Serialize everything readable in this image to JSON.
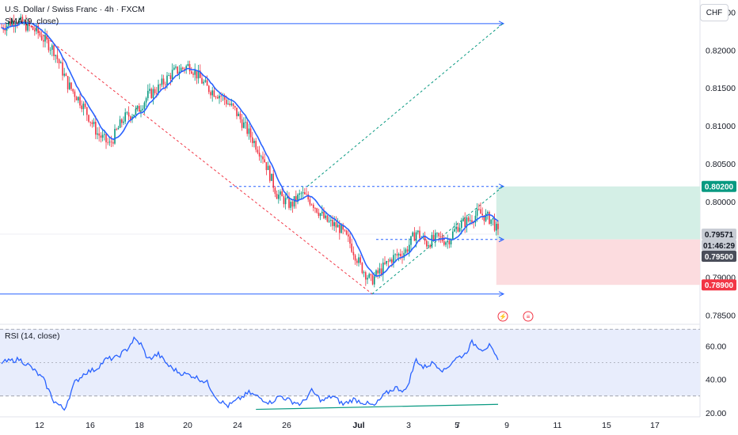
{
  "header": {
    "symbol_title": "U.S. Dollar / Swiss Franc · 4h · FXCM",
    "sma_label": "SMA (9, close)",
    "rsi_label": "RSI (14, close)",
    "currency_button": "CHF"
  },
  "price_axis": {
    "ticks": [
      "0.82500",
      "0.82000",
      "0.81500",
      "0.81000",
      "0.80500",
      "0.80000",
      "0.79500",
      "0.79000",
      "0.78500"
    ],
    "badges": [
      {
        "text": "0.80200",
        "color": "#089981"
      },
      {
        "text": "0.79571",
        "color": "#c8ccd4"
      },
      {
        "text": "01:46:29",
        "color": "#c8ccd4"
      },
      {
        "text": "0.79500",
        "color": "#4a4e5a"
      },
      {
        "text": "0.78900",
        "color": "#f23645"
      }
    ]
  },
  "rsi_axis": {
    "ticks": [
      "60.00",
      "40.00",
      "20.00"
    ]
  },
  "time_axis": {
    "ticks": [
      "12",
      "16",
      "18",
      "20",
      "24",
      "26",
      "Jul",
      "3",
      "5",
      "7",
      "9",
      "11",
      "15",
      "17"
    ]
  },
  "colors": {
    "up": "#089981",
    "down": "#f23645",
    "sma": "#2962ff",
    "rsi": "#2962ff",
    "trendline": "#2962ff",
    "fib_red": "#f23645",
    "fib_green": "#089981",
    "profit_zone": "#d4efe6",
    "loss_zone": "#fcdcdf",
    "rsi_band": "#e8edfc"
  },
  "icons": [
    "lightning-event-icon",
    "us-flag-event-icon"
  ],
  "chart_data": [
    {
      "type": "candlestick",
      "title": "U.S. Dollar / Swiss Franc · 4h · FXCM",
      "ylim": [
        0.7838,
        0.8262
      ],
      "x_ticks": [
        "12",
        "16",
        "18",
        "20",
        "24",
        "26",
        "Jul",
        "3",
        "5",
        "7",
        "9",
        "11",
        "15",
        "17"
      ],
      "anchors": [
        [
          0,
          0.823
        ],
        [
          8,
          0.824
        ],
        [
          20,
          0.8225
        ],
        [
          30,
          0.82
        ],
        [
          38,
          0.8155
        ],
        [
          46,
          0.813
        ],
        [
          55,
          0.809
        ],
        [
          62,
          0.8075
        ],
        [
          70,
          0.811
        ],
        [
          78,
          0.812
        ],
        [
          84,
          0.814
        ],
        [
          90,
          0.815
        ],
        [
          98,
          0.817
        ],
        [
          108,
          0.818
        ],
        [
          118,
          0.815
        ],
        [
          126,
          0.814
        ],
        [
          134,
          0.812
        ],
        [
          142,
          0.809
        ],
        [
          150,
          0.806
        ],
        [
          158,
          0.801
        ],
        [
          166,
          0.7995
        ],
        [
          172,
          0.801
        ],
        [
          178,
          0.8
        ],
        [
          186,
          0.7975
        ],
        [
          194,
          0.7965
        ],
        [
          200,
          0.7945
        ],
        [
          206,
          0.7915
        ],
        [
          212,
          0.7895
        ],
        [
          218,
          0.791
        ],
        [
          224,
          0.7925
        ],
        [
          232,
          0.7935
        ],
        [
          238,
          0.796
        ],
        [
          244,
          0.7945
        ],
        [
          250,
          0.7952
        ],
        [
          256,
          0.7948
        ],
        [
          262,
          0.7968
        ],
        [
          268,
          0.7975
        ],
        [
          274,
          0.7985
        ],
        [
          278,
          0.798
        ],
        [
          282,
          0.7975
        ],
        [
          285,
          0.7957
        ]
      ],
      "series": [
        {
          "name": "SMA (9, close)",
          "kind": "sma",
          "period": 9
        }
      ],
      "trade_setup": {
        "take_profit": 0.802,
        "entry": 0.795,
        "stop_loss": 0.789,
        "last_price": 0.79571,
        "bar_countdown": "01:46:29"
      },
      "horizontal_lines": [
        0.8235,
        0.7878
      ],
      "dashed_levels": [
        0.802,
        0.795
      ]
    },
    {
      "type": "line",
      "title": "RSI (14, close)",
      "ylim": [
        18,
        72
      ],
      "bands": [
        30,
        70
      ],
      "ticks": [
        60,
        40,
        20
      ],
      "anchors": [
        [
          0,
          50
        ],
        [
          10,
          52
        ],
        [
          16,
          48
        ],
        [
          24,
          40
        ],
        [
          30,
          27
        ],
        [
          36,
          22
        ],
        [
          42,
          38
        ],
        [
          48,
          44
        ],
        [
          54,
          46
        ],
        [
          60,
          52
        ],
        [
          66,
          53
        ],
        [
          72,
          58
        ],
        [
          76,
          64
        ],
        [
          80,
          61
        ],
        [
          84,
          52
        ],
        [
          90,
          55
        ],
        [
          96,
          48
        ],
        [
          102,
          44
        ],
        [
          110,
          42
        ],
        [
          118,
          38
        ],
        [
          124,
          28
        ],
        [
          130,
          24
        ],
        [
          136,
          28
        ],
        [
          142,
          32
        ],
        [
          148,
          29
        ],
        [
          154,
          26
        ],
        [
          160,
          30
        ],
        [
          166,
          27
        ],
        [
          172,
          25
        ],
        [
          178,
          33
        ],
        [
          184,
          27
        ],
        [
          190,
          30
        ],
        [
          196,
          25
        ],
        [
          202,
          28
        ],
        [
          208,
          26
        ],
        [
          214,
          24
        ],
        [
          220,
          31
        ],
        [
          226,
          35
        ],
        [
          232,
          33
        ],
        [
          238,
          52
        ],
        [
          242,
          47
        ],
        [
          248,
          50
        ],
        [
          254,
          45
        ],
        [
          260,
          52
        ],
        [
          266,
          55
        ],
        [
          270,
          62
        ],
        [
          276,
          58
        ],
        [
          280,
          60
        ],
        [
          285,
          51
        ]
      ]
    }
  ]
}
